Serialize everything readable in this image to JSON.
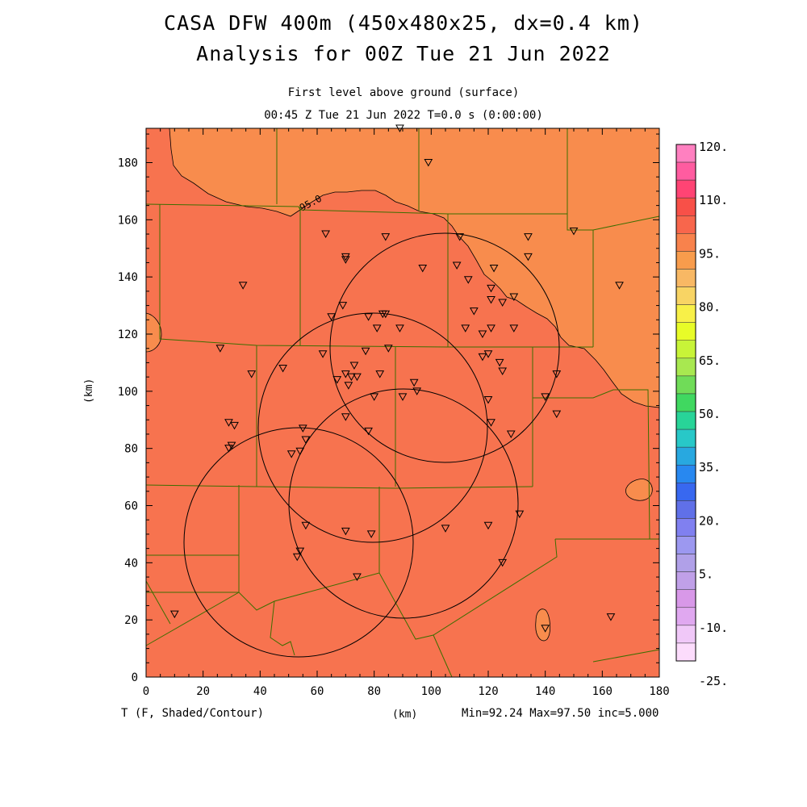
{
  "title_line1": "CASA DFW 400m (450x480x25, dx=0.4 km)",
  "title_line2": "Analysis for 00Z Tue 21 Jun 2022",
  "subtitle": "First level above ground (surface)",
  "time_line": "00:45 Z Tue 21 Jun 2022    T=0.0 s (0:00:00)",
  "variable_label": "T (F, Shaded/Contour)",
  "x_axis_unit": "(km)",
  "y_axis_unit": "(km)",
  "stats_label": "Min=92.24 Max=97.50 inc=5.000",
  "contour_label": "95.0",
  "axes": {
    "x_range": [
      0,
      180
    ],
    "y_range": [
      0,
      192
    ],
    "x_ticks": [
      0,
      20,
      40,
      60,
      80,
      100,
      120,
      140,
      160,
      180
    ],
    "y_ticks": [
      0,
      20,
      40,
      60,
      80,
      100,
      120,
      140,
      160,
      180
    ]
  },
  "colorbar": {
    "labels": [
      "120.",
      "110.",
      "95.",
      "80.",
      "65.",
      "50.",
      "35.",
      "20.",
      "5.",
      "-10.",
      "-25."
    ],
    "colors": [
      "#ff80c0",
      "#ff5ca0",
      "#ff4474",
      "#f85048",
      "#f8664c",
      "#f8824c",
      "#f89c4c",
      "#f8b864",
      "#f8d464",
      "#f8f048",
      "#e8fc28",
      "#c8f438",
      "#a8e850",
      "#70dc58",
      "#40d860",
      "#28d498",
      "#28c8c8",
      "#28a8e0",
      "#2888f0",
      "#3868f0",
      "#6070e8",
      "#8080f0",
      "#9c98f0",
      "#b0a0e8",
      "#c0a0e8",
      "#d898e8",
      "#e0a8f0",
      "#f0c8f8",
      "#fcdcfc"
    ]
  },
  "field_colors": {
    "warm": "#f7734f",
    "warmer_contour_region": "#f88c4d",
    "boundary": "#3c6e00"
  },
  "radar_rings": [
    {
      "cx": 100,
      "cy": 115,
      "r": 40
    },
    {
      "cx": 80,
      "cy": 87,
      "r": 40
    },
    {
      "cx": 92,
      "cy": 60,
      "r": 40
    },
    {
      "cx": 55,
      "cy": 47,
      "r": 40
    }
  ],
  "stations": [
    [
      89,
      192
    ],
    [
      99,
      180
    ],
    [
      63,
      155
    ],
    [
      84,
      154
    ],
    [
      70,
      147
    ],
    [
      70,
      146
    ],
    [
      110,
      154
    ],
    [
      134,
      154
    ],
    [
      150,
      156
    ],
    [
      34,
      137
    ],
    [
      97,
      143
    ],
    [
      109,
      144
    ],
    [
      113,
      139
    ],
    [
      122,
      143
    ],
    [
      134,
      147
    ],
    [
      121,
      136
    ],
    [
      125,
      131
    ],
    [
      129,
      133
    ],
    [
      121,
      132
    ],
    [
      166,
      137
    ],
    [
      69,
      130
    ],
    [
      65,
      126
    ],
    [
      78,
      126
    ],
    [
      84,
      127
    ],
    [
      83,
      127
    ],
    [
      115,
      128
    ],
    [
      112,
      122
    ],
    [
      118,
      120
    ],
    [
      121,
      122
    ],
    [
      129,
      122
    ],
    [
      81,
      122
    ],
    [
      89,
      122
    ],
    [
      26,
      115
    ],
    [
      62,
      113
    ],
    [
      77,
      114
    ],
    [
      85,
      115
    ],
    [
      73,
      109
    ],
    [
      118,
      112
    ],
    [
      120,
      113
    ],
    [
      124,
      110
    ],
    [
      125,
      107
    ],
    [
      144,
      106
    ],
    [
      48,
      108
    ],
    [
      67,
      104
    ],
    [
      70,
      106
    ],
    [
      71,
      102
    ],
    [
      74,
      105
    ],
    [
      72,
      105
    ],
    [
      82,
      106
    ],
    [
      94,
      103
    ],
    [
      37,
      106
    ],
    [
      90,
      98
    ],
    [
      95,
      100
    ],
    [
      120,
      97
    ],
    [
      140,
      98
    ],
    [
      144,
      92
    ],
    [
      80,
      98
    ],
    [
      29,
      89
    ],
    [
      31,
      88
    ],
    [
      70,
      91
    ],
    [
      121,
      89
    ],
    [
      128,
      85
    ],
    [
      55,
      87
    ],
    [
      56,
      83
    ],
    [
      78,
      86
    ],
    [
      30,
      81
    ],
    [
      29,
      80
    ],
    [
      51,
      78
    ],
    [
      54,
      79
    ],
    [
      131,
      57
    ],
    [
      120,
      53
    ],
    [
      105,
      52
    ],
    [
      56,
      53
    ],
    [
      70,
      51
    ],
    [
      79,
      50
    ],
    [
      54,
      44
    ],
    [
      53,
      42
    ],
    [
      74,
      35
    ],
    [
      125,
      40
    ],
    [
      10,
      22
    ],
    [
      140,
      17
    ],
    [
      163,
      21
    ]
  ]
}
